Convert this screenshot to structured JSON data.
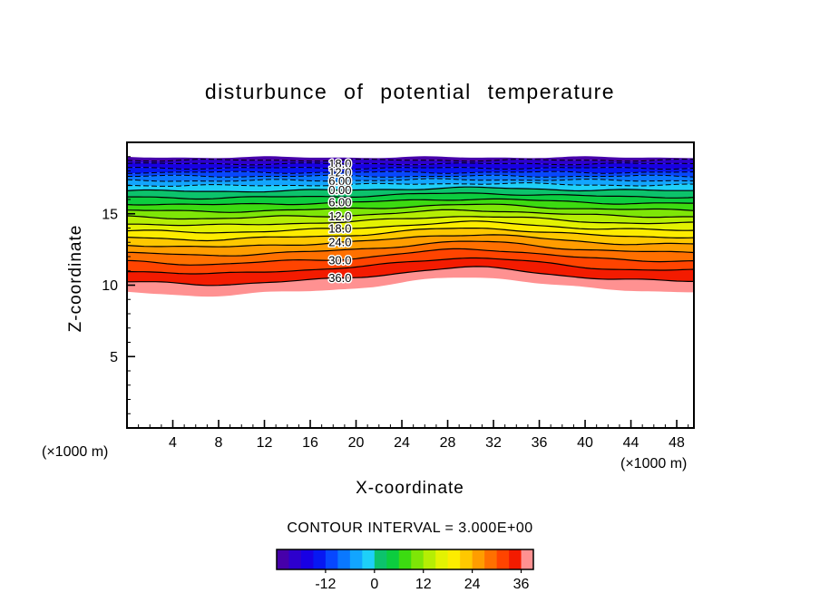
{
  "figure": {
    "title": "disturbunce of potential temperature",
    "xlabel": "X-coordinate",
    "ylabel": "Z-coordinate",
    "x_unit_left": "(×1000 m)",
    "x_unit_right": "(×1000 m)",
    "contour_interval_text": "CONTOUR INTERVAL = 3.000E+00"
  },
  "chart_data": {
    "type": "contour",
    "title": "disturbunce of potential temperature",
    "xlabel": "X-coordinate",
    "ylabel": "Z-coordinate",
    "x_unit": "(×1000 m)",
    "contour_interval": 3.0,
    "contour_interval_text": "CONTOUR INTERVAL = 3.000E+00",
    "x_range": [
      0,
      49.5
    ],
    "z_range": [
      0,
      20
    ],
    "x_ticks": [
      4,
      8,
      12,
      16,
      20,
      24,
      28,
      32,
      36,
      40,
      44,
      48
    ],
    "x_minor_step": 1,
    "z_ticks": [
      5,
      10,
      15
    ],
    "z_minor_step": 1,
    "fill_levels": [
      -24,
      -21,
      -18,
      -15,
      -12,
      -9,
      -6,
      -3,
      0,
      3,
      6,
      9,
      12,
      15,
      18,
      21,
      24,
      27,
      30,
      33,
      36,
      39
    ],
    "line_levels": [
      -21,
      -18,
      -15,
      -12,
      -9,
      -6,
      -3,
      0,
      3,
      6,
      9,
      12,
      15,
      18,
      21,
      24,
      27,
      30,
      33,
      36
    ],
    "negative_dashed": true,
    "level_heights": [
      [
        -24,
        18.95
      ],
      [
        -21,
        18.75
      ],
      [
        -18,
        18.5
      ],
      [
        -15,
        18.2
      ],
      [
        -12,
        17.9
      ],
      [
        -9,
        17.63
      ],
      [
        -6,
        17.33
      ],
      [
        -3,
        17.0
      ],
      [
        0,
        16.62
      ],
      [
        3,
        16.18
      ],
      [
        6,
        15.72
      ],
      [
        9,
        15.26
      ],
      [
        12,
        14.8
      ],
      [
        15,
        14.33
      ],
      [
        18,
        13.85
      ],
      [
        21,
        13.37
      ],
      [
        24,
        12.86
      ],
      [
        27,
        12.3
      ],
      [
        30,
        11.7
      ],
      [
        33,
        11.04
      ],
      [
        36,
        10.3
      ],
      [
        39,
        9.55
      ]
    ],
    "shape": {
      "bump_center": 30,
      "bump_width": 8.5,
      "dip_center": 7,
      "dip_width": 5,
      "dip_frac": 0.3,
      "amp_v0": -9,
      "amp_span": 48,
      "wiggle1": [
        0.05,
        2.2,
        0.7
      ],
      "wiggle2": [
        0.03,
        1.1,
        1.7
      ]
    },
    "label_x": 18.6,
    "contour_labels": [
      {
        "value": -18,
        "text": "18.0"
      },
      {
        "value": -12,
        "text": "12.0"
      },
      {
        "value": -6,
        "text": "6.00"
      },
      {
        "value": 0,
        "text": "0.00"
      },
      {
        "value": 6,
        "text": "6.00"
      },
      {
        "value": 12,
        "text": "12.0"
      },
      {
        "value": 18,
        "text": "18.0"
      },
      {
        "value": 24,
        "text": "24.0"
      },
      {
        "value": 30,
        "text": "30.0"
      },
      {
        "value": 36,
        "text": "36.0"
      }
    ],
    "palette": [
      "#4600aa",
      "#2d00cd",
      "#1800e4",
      "#0718f2",
      "#0747ff",
      "#0a78ff",
      "#12a5ff",
      "#1ed0f8",
      "#0cc36c",
      "#0ccd3f",
      "#3cdb11",
      "#7ee607",
      "#b5ee04",
      "#e3f202",
      "#fdec00",
      "#ffc800",
      "#ff9d00",
      "#ff7000",
      "#ff4400",
      "#f31b00",
      "#ff9191"
    ],
    "colorbar": {
      "min": -24,
      "max": 39,
      "tick_values": [
        -12,
        0,
        12,
        24,
        36
      ],
      "tick_labels": [
        "-12",
        "0",
        "12",
        "24",
        "36"
      ]
    }
  }
}
